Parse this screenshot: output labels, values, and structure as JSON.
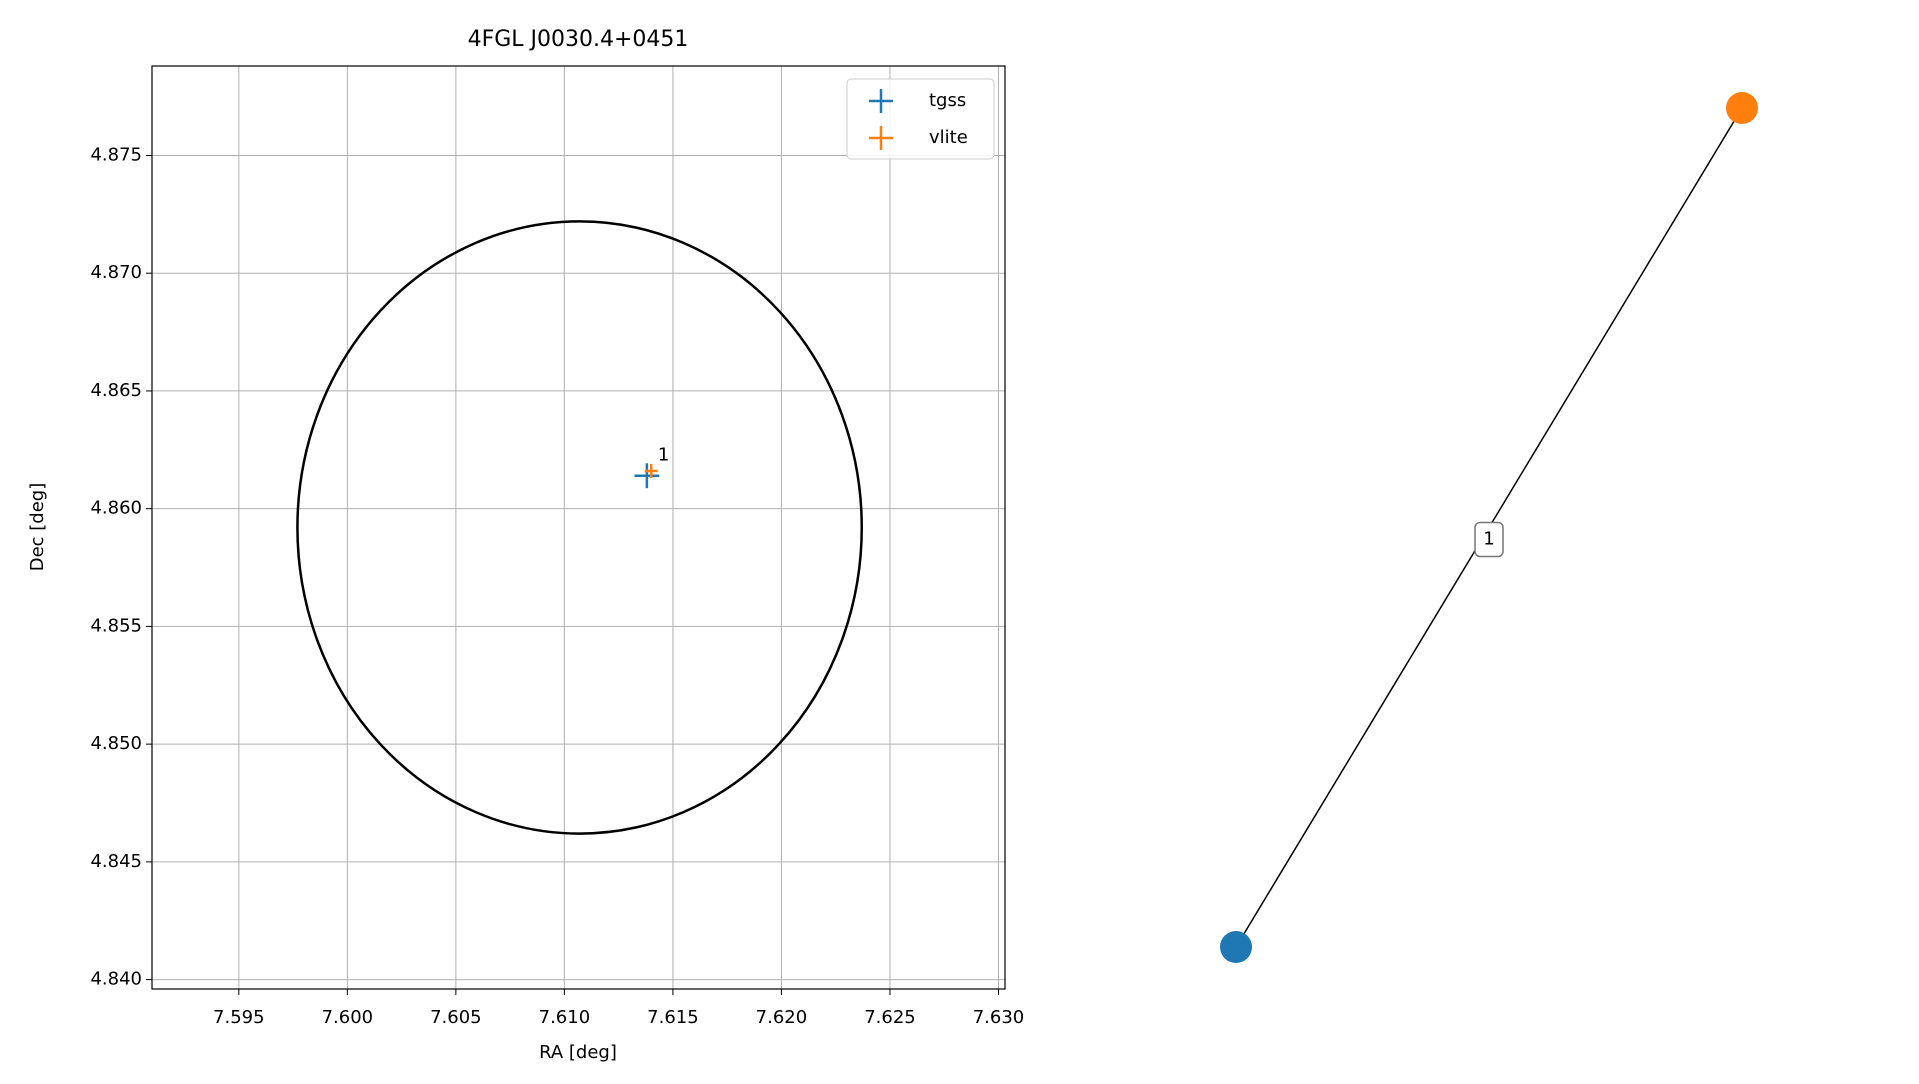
{
  "chart_data": [
    {
      "type": "scatter",
      "title": "4FGL J0030.4+0451",
      "x_label": "RA [deg]",
      "y_label": "Dec [deg]",
      "xlim": [
        7.591,
        7.6303
      ],
      "ylim": [
        4.8396,
        4.8788
      ],
      "xticks": [
        {
          "value": 7.595,
          "label": "7.595"
        },
        {
          "value": 7.6,
          "label": "7.600"
        },
        {
          "value": 7.605,
          "label": "7.605"
        },
        {
          "value": 7.61,
          "label": "7.610"
        },
        {
          "value": 7.615,
          "label": "7.615"
        },
        {
          "value": 7.62,
          "label": "7.620"
        },
        {
          "value": 7.625,
          "label": "7.625"
        },
        {
          "value": 7.63,
          "label": "7.630"
        }
      ],
      "yticks": [
        {
          "value": 4.84,
          "label": "4.840"
        },
        4.845,
        {
          "value": 4.85,
          "label": "4.850"
        },
        4.855,
        {
          "value": 4.86,
          "label": "4.860"
        },
        4.865,
        {
          "value": 4.87,
          "label": "4.870"
        },
        4.875
      ],
      "grid": true,
      "legend": "upper right",
      "series": [
        {
          "name": "tgss",
          "color": "#1f77b4",
          "x": [
            7.6138
          ],
          "y": [
            4.8614
          ],
          "xerr": [
            0.00057
          ],
          "yerr": [
            0.00053
          ]
        },
        {
          "name": "vlite",
          "color": "#ff7f0e",
          "x": [
            7.614
          ],
          "y": [
            4.8616
          ],
          "xerr": [
            0.0003
          ],
          "yerr": [
            0.0003
          ]
        }
      ],
      "circle": {
        "center": [
          7.6107,
          4.8592
        ],
        "radius": 0.013
      },
      "annotations": [
        {
          "text": "1",
          "x": 7.6138,
          "y": 4.8614
        }
      ]
    },
    {
      "type": "graph",
      "nodes": [
        {
          "color": "#1f77b4"
        },
        {
          "color": "#ff7f0e"
        }
      ],
      "edges": [
        {
          "source": 0,
          "target": 1,
          "label": "1"
        }
      ]
    }
  ]
}
